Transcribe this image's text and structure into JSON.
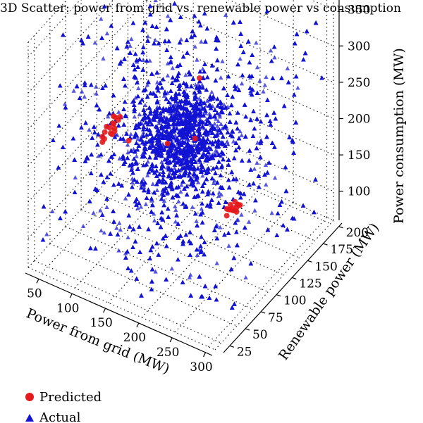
{
  "chart_data": {
    "type": "scatter",
    "projection": "3d",
    "title": "3D Scatter: power from grid vs. renewable power vs consumption",
    "xlabel": "Power from grid (MW)",
    "ylabel": "Renewable power (MW)",
    "zlabel": "Power consumption (MW)",
    "xlim": [
      30,
      310
    ],
    "ylim": [
      15,
      205
    ],
    "zlim": [
      60,
      370
    ],
    "xticks": [
      50,
      100,
      150,
      200,
      250,
      300
    ],
    "yticks": [
      25,
      50,
      75,
      100,
      125,
      150,
      175,
      200
    ],
    "zticks": [
      100,
      150,
      200,
      250,
      300,
      350
    ],
    "grid": true,
    "legend_position": "bottom-left",
    "series": [
      {
        "name": "Predicted",
        "marker": "circle",
        "color": "#e41a1c",
        "points": [
          [
            40,
            130,
            150
          ],
          [
            42,
            125,
            148
          ],
          [
            45,
            135,
            152
          ],
          [
            48,
            128,
            146
          ],
          [
            44,
            140,
            155
          ],
          [
            50,
            132,
            150
          ],
          [
            46,
            120,
            145
          ],
          [
            43,
            138,
            158
          ],
          [
            52,
            126,
            148
          ],
          [
            47,
            134,
            153
          ],
          [
            41,
            122,
            144
          ],
          [
            49,
            142,
            156
          ],
          [
            53,
            129,
            150
          ],
          [
            45,
            118,
            142
          ],
          [
            51,
            137,
            157
          ],
          [
            44,
            131,
            149
          ],
          [
            300,
            55,
            210
          ],
          [
            298,
            60,
            205
          ],
          [
            295,
            50,
            215
          ],
          [
            302,
            58,
            212
          ],
          [
            297,
            65,
            208
          ],
          [
            293,
            52,
            203
          ],
          [
            300,
            48,
            218
          ],
          [
            296,
            62,
            214
          ],
          [
            304,
            56,
            209
          ],
          [
            292,
            59,
            211
          ],
          [
            299,
            67,
            206
          ],
          [
            301,
            53,
            216
          ],
          [
            294,
            57,
            207
          ],
          [
            303,
            61,
            213
          ],
          [
            150,
            110,
            190
          ],
          [
            210,
            90,
            240
          ],
          [
            170,
            140,
            260
          ],
          [
            120,
            80,
            210
          ]
        ]
      },
      {
        "name": "Actual",
        "marker": "triangle",
        "color": "#1414d2",
        "distribution": {
          "count": 9000,
          "x_range": [
            40,
            305
          ],
          "y_range": [
            20,
            200
          ],
          "z_range": [
            70,
            350
          ]
        }
      }
    ]
  }
}
